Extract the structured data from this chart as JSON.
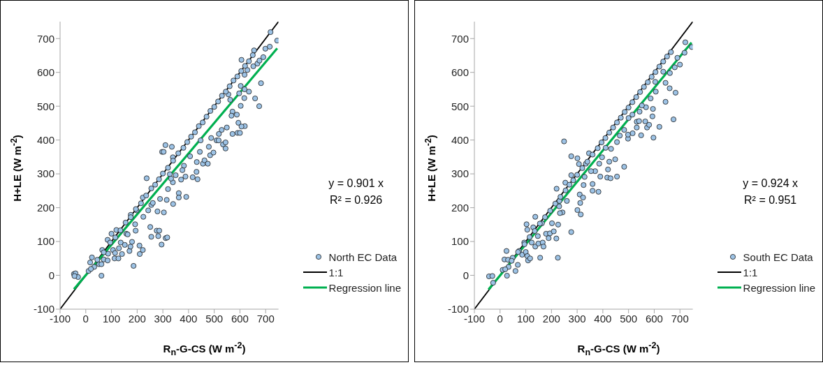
{
  "chart_data": [
    {
      "type": "scatter",
      "xlabel": "R$_{n}$-G-CS (W m$^{-2}$)",
      "ylabel": "H+LE (W m$^{-2}$)",
      "annotations": [
        "y = 0.901 x",
        "R² = 0.926"
      ],
      "xlim": [
        -100,
        750
      ],
      "ylim": [
        -100,
        750
      ],
      "xticks": [
        -100,
        0,
        100,
        200,
        300,
        400,
        500,
        600,
        700
      ],
      "yticks": [
        -100,
        0,
        100,
        200,
        300,
        400,
        500,
        600,
        700
      ],
      "legend": "bottom right",
      "series": [
        {
          "name": "North EC Data",
          "color": "#9dc3e6",
          "marker": "circle",
          "x": [
            -46,
            -40,
            -30,
            -44,
            11,
            24,
            17,
            33,
            52,
            61,
            61,
            64,
            70,
            85,
            87,
            85,
            100,
            106,
            112,
            114,
            119,
            127,
            129,
            136,
            141,
            152,
            158,
            163,
            170,
            174,
            175,
            180,
            186,
            192,
            194,
            198,
            209,
            210,
            222,
            224,
            222,
            237,
            243,
            251,
            255,
            255,
            261,
            276,
            282,
            286,
            279,
            289,
            295,
            297,
            303,
            311,
            317,
            310,
            335,
            304,
            315,
            340,
            339,
            320,
            327,
            339,
            332,
            362,
            362,
            391,
            388,
            416,
            435,
            431,
            432,
            456,
            462,
            475,
            484,
            497,
            479,
            488,
            509,
            517,
            534,
            544,
            544,
            529,
            518,
            549,
            571,
            591,
            600,
            619,
            594,
            571,
            567,
            588,
            603,
            617,
            635,
            659,
            675,
            682,
            652,
            668,
            676,
            691,
            699,
            716,
            745,
            719,
            606,
            655,
            629,
            618,
            618,
            603,
            597,
            555,
            562,
            606,
            444,
            447,
            406,
            382,
            376,
            371,
            350,
            20,
            45,
            70,
            95,
            115,
            135,
            155,
            175,
            195,
            215,
            235,
            255,
            270,
            285,
            300,
            320,
            340,
            360,
            380,
            395,
            410,
            425,
            440,
            455,
            470,
            485,
            500,
            515,
            530,
            545,
            560,
            575,
            590,
            605,
            620,
            635,
            650
          ],
          "values": [
            4,
            6,
            -5,
            -2,
            13,
            53,
            38,
            25,
            33,
            33,
            -1,
            75,
            47,
            44,
            64,
            105,
            123,
            75,
            50,
            66,
            134,
            50,
            80,
            97,
            63,
            90,
            123,
            121,
            72,
            85,
            179,
            99,
            28,
            151,
            132,
            192,
            88,
            63,
            75,
            173,
            230,
            287,
            192,
            143,
            114,
            208,
            214,
            132,
            116,
            132,
            189,
            226,
            91,
            365,
            365,
            110,
            112,
            385,
            380,
            186,
            223,
            211,
            275,
            255,
            299,
            349,
            286,
            243,
            230,
            232,
            292,
            290,
            284,
            306,
            335,
            330,
            340,
            330,
            355,
            363,
            380,
            406,
            399,
            399,
            387,
            375,
            393,
            430,
            418,
            437,
            418,
            421,
            421,
            441,
            451,
            484,
            472,
            475,
            501,
            524,
            543,
            523,
            500,
            568,
            618,
            626,
            635,
            645,
            670,
            676,
            694,
            719,
            637,
            665,
            607,
            593,
            550,
            560,
            538,
            535,
            519,
            440,
            365,
            399,
            352,
            324,
            311,
            283,
            296,
            19,
            46,
            68,
            97,
            112,
            133,
            156,
            172,
            196,
            213,
            236,
            257,
            268,
            284,
            301,
            318,
            339,
            361,
            377,
            394,
            410,
            423,
            441,
            452,
            469,
            486,
            498,
            514,
            531,
            543,
            559,
            576,
            588,
            604,
            619,
            633,
            651
          ]
        },
        {
          "type": "line",
          "name": "1:1",
          "color": "#000000",
          "marker": "none",
          "x": [
            -100,
            750
          ],
          "values": [
            -100,
            750
          ]
        },
        {
          "type": "line",
          "name": "Regression line",
          "color": "#00b050",
          "marker": "none",
          "x": [
            -46,
            745
          ],
          "values": [
            -41,
            671
          ]
        }
      ]
    },
    {
      "type": "scatter",
      "xlabel": "R$_{n}$-G-CS (W m$^{-2}$)",
      "ylabel": "H+LE (W m$^{-2}$)",
      "annotations": [
        "y = 0.924 x",
        "R² = 0.951"
      ],
      "xlim": [
        -100,
        750
      ],
      "ylim": [
        -100,
        750
      ],
      "xticks": [
        -100,
        0,
        100,
        200,
        300,
        400,
        500,
        600,
        700
      ],
      "yticks": [
        -100,
        0,
        100,
        200,
        300,
        400,
        500,
        600,
        700
      ],
      "legend": "bottom right",
      "series": [
        {
          "name": "South EC Data",
          "color": "#9dc3e6",
          "marker": "circle",
          "x": [
            -43,
            -30,
            -27,
            10,
            17,
            25,
            31,
            27,
            33,
            60,
            69,
            49,
            74,
            86,
            94,
            103,
            106,
            100,
            106,
            109,
            117,
            123,
            129,
            137,
            137,
            156,
            147,
            149,
            163,
            166,
            169,
            179,
            189,
            194,
            202,
            209,
            219,
            226,
            225,
            220,
            230,
            243,
            233,
            249,
            260,
            277,
            277,
            301,
            301,
            314,
            312,
            310,
            323,
            325,
            329,
            307,
            277,
            254,
            231,
            360,
            360,
            383,
            390,
            386,
            417,
            430,
            455,
            420,
            448,
            483,
            425,
            455,
            432,
            498,
            498,
            516,
            549,
            532,
            532,
            541,
            565,
            572,
            580,
            597,
            593,
            595,
            620,
            675,
            644,
            660,
            683,
            644,
            635,
            661,
            680,
            700,
            690,
            718,
            721,
            746,
            604,
            606,
            586,
            568,
            543,
            552,
            515,
            500,
            483,
            466,
            411,
            397,
            370,
            354,
            334,
            346,
            20,
            45,
            70,
            95,
            115,
            135,
            155,
            175,
            195,
            215,
            235,
            255,
            270,
            285,
            300,
            320,
            340,
            360,
            380,
            395,
            410,
            425,
            440,
            455,
            470,
            485,
            500,
            515,
            530,
            545,
            560,
            575,
            590,
            605,
            620,
            635,
            650,
            665
          ],
          "values": [
            -3,
            -2,
            -22,
            16,
            47,
            72,
            46,
            -1,
            25,
            13,
            31,
            52,
            72,
            61,
            97,
            151,
            135,
            69,
            57,
            44,
            50,
            97,
            142,
            173,
            85,
            52,
            116,
            94,
            154,
            97,
            85,
            123,
            110,
            124,
            154,
            130,
            109,
            150,
            52,
            256,
            204,
            186,
            184,
            396,
            220,
            352,
            128,
            346,
            193,
            180,
            214,
            239,
            230,
            267,
            291,
            329,
            296,
            274,
            220,
            270,
            250,
            247,
            292,
            330,
            289,
            287,
            292,
            313,
            343,
            321,
            336,
            394,
            374,
            404,
            416,
            420,
            414,
            437,
            454,
            456,
            455,
            437,
            445,
            407,
            470,
            492,
            439,
            461,
            513,
            553,
            540,
            569,
            602,
            598,
            615,
            623,
            643,
            658,
            689,
            675,
            572,
            543,
            523,
            497,
            484,
            502,
            475,
            465,
            430,
            413,
            377,
            349,
            308,
            308,
            330,
            361,
            18,
            43,
            69,
            92,
            113,
            131,
            153,
            172,
            191,
            212,
            232,
            251,
            268,
            281,
            297,
            317,
            336,
            357,
            376,
            393,
            406,
            422,
            437,
            452,
            466,
            483,
            496,
            512,
            527,
            542,
            557,
            571,
            587,
            601,
            617,
            632,
            647,
            660
          ]
        },
        {
          "type": "line",
          "name": "1:1",
          "color": "#000000",
          "marker": "none",
          "x": [
            -100,
            750
          ],
          "values": [
            -100,
            750
          ]
        },
        {
          "type": "line",
          "name": "Regression line",
          "color": "#00b050",
          "marker": "none",
          "x": [
            -45,
            745
          ],
          "values": [
            -42,
            688
          ]
        }
      ]
    }
  ]
}
